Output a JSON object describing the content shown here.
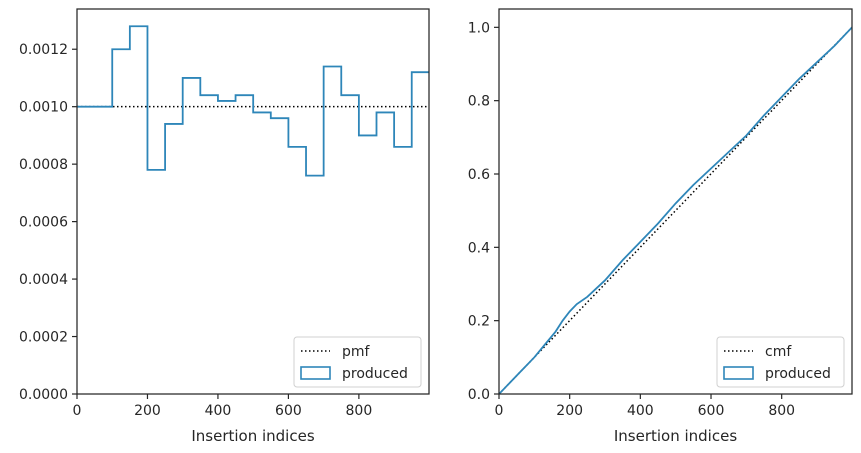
{
  "chart_data": [
    {
      "type": "histogram-step",
      "xlabel": "Insertion indices",
      "ylabel": "",
      "xlim": [
        0,
        999
      ],
      "ylim": [
        0,
        0.00134
      ],
      "xticks": [
        0,
        200,
        400,
        600,
        800
      ],
      "xtick_labels": [
        "0",
        "200",
        "400",
        "600",
        "800"
      ],
      "yticks": [
        0,
        0.0002,
        0.0004,
        0.0006,
        0.0008,
        0.001,
        0.0012
      ],
      "ytick_labels": [
        "0.0000",
        "0.0002",
        "0.0004",
        "0.0006",
        "0.0008",
        "0.0010",
        "0.0012"
      ],
      "legend_position": "lower-right",
      "series": [
        {
          "name": "pmf",
          "style": "dotted",
          "color": "#000000",
          "x": [
            0,
            999
          ],
          "values": [
            0.001,
            0.001
          ]
        },
        {
          "name": "produced",
          "style": "step",
          "color": "#2e86b9",
          "bin_edges": [
            0,
            50,
            100,
            150,
            200,
            250,
            300,
            350,
            400,
            450,
            500,
            550,
            600,
            650,
            700,
            750,
            800,
            850,
            900,
            950,
            999
          ],
          "values": [
            0.001,
            0.001,
            0.0012,
            0.00128,
            0.00078,
            0.00094,
            0.0011,
            0.00104,
            0.00102,
            0.00104,
            0.00098,
            0.00096,
            0.00086,
            0.00076,
            0.00114,
            0.00104,
            0.0009,
            0.00098,
            0.00086,
            0.00112
          ]
        }
      ]
    },
    {
      "type": "line",
      "xlabel": "Insertion indices",
      "ylabel": "",
      "xlim": [
        0,
        999
      ],
      "ylim": [
        0,
        1.05
      ],
      "xticks": [
        0,
        200,
        400,
        600,
        800
      ],
      "xtick_labels": [
        "0",
        "200",
        "400",
        "600",
        "800"
      ],
      "yticks": [
        0,
        0.2,
        0.4,
        0.6,
        0.8,
        1.0
      ],
      "ytick_labels": [
        "0.0",
        "0.2",
        "0.4",
        "0.6",
        "0.8",
        "1.0"
      ],
      "legend_position": "lower-right",
      "series": [
        {
          "name": "cmf",
          "style": "dotted",
          "color": "#000000",
          "x": [
            0,
            999
          ],
          "values": [
            0,
            1.0
          ]
        },
        {
          "name": "produced",
          "style": "line",
          "color": "#2e86b9",
          "x": [
            0,
            50,
            100,
            130,
            160,
            180,
            200,
            220,
            250,
            300,
            350,
            400,
            450,
            500,
            550,
            600,
            650,
            700,
            750,
            800,
            850,
            900,
            950,
            999
          ],
          "values": [
            0,
            0.05,
            0.1,
            0.135,
            0.17,
            0.2,
            0.225,
            0.245,
            0.265,
            0.31,
            0.365,
            0.415,
            0.465,
            0.52,
            0.57,
            0.615,
            0.66,
            0.705,
            0.76,
            0.81,
            0.86,
            0.905,
            0.95,
            1.0
          ]
        }
      ]
    }
  ]
}
